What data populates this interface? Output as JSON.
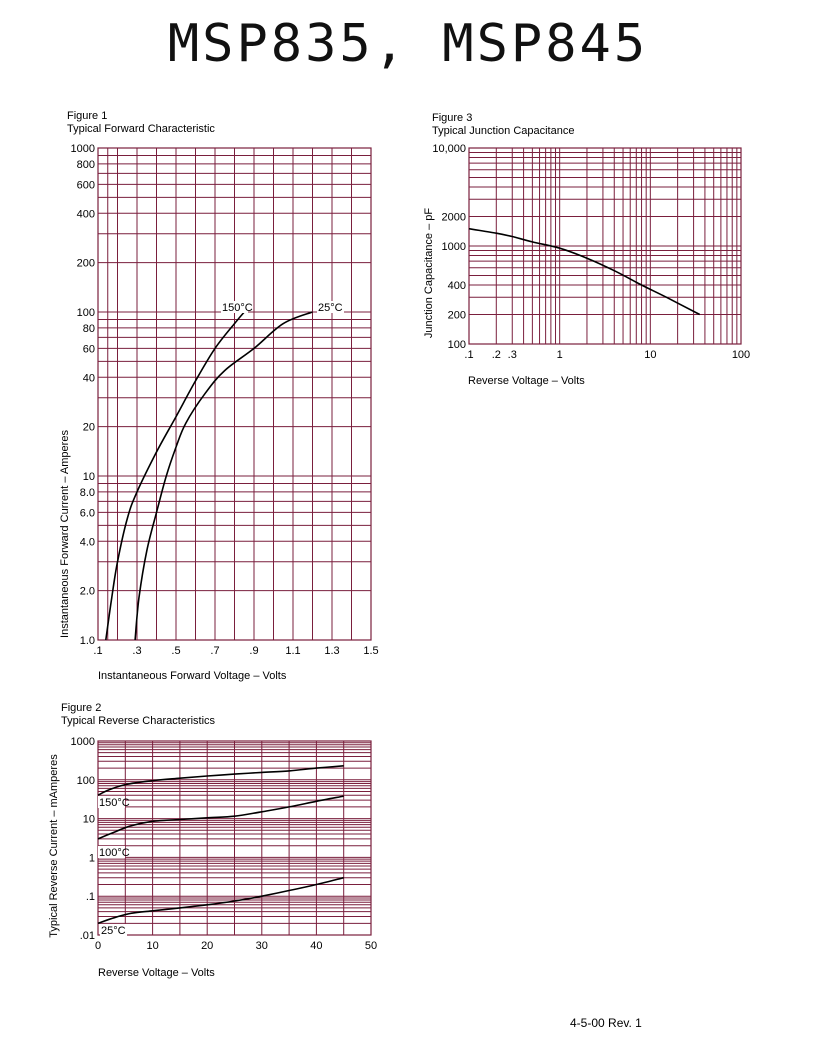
{
  "page": {
    "title": "MSP835, MSP845",
    "revision": "4-5-00   Rev. 1"
  },
  "colors": {
    "grid": "#7a1f3d",
    "curve": "#000000",
    "text": "#000000"
  },
  "chart_data": [
    {
      "figure": "Figure 1",
      "title": "Typical Forward Characteristic",
      "type": "line",
      "xlabel": "Instantaneous Forward Voltage – Volts",
      "ylabel": "Instantaneous Forward Current – Amperes",
      "xscale": "linear",
      "yscale": "log",
      "xlim": [
        0.1,
        1.5
      ],
      "ylim": [
        1,
        1000
      ],
      "xticks": [
        0.1,
        0.3,
        0.5,
        0.7,
        0.9,
        1.1,
        1.3,
        1.5
      ],
      "xtick_labels": [
        ".1",
        ".3",
        ".5",
        ".7",
        ".9",
        "1.1",
        "1.3",
        "1.5"
      ],
      "yticks": [
        1,
        2,
        4,
        6,
        8,
        10,
        20,
        40,
        60,
        80,
        100,
        200,
        400,
        600,
        800,
        1000
      ],
      "ytick_labels": [
        "1.0",
        "2.0",
        "4.0",
        "6.0",
        "8.0",
        "10",
        "20",
        "40",
        "60",
        "80",
        "100",
        "200",
        "400",
        "600",
        "800",
        "1000"
      ],
      "grid": true,
      "series": [
        {
          "name": "150°C",
          "x": [
            0.14,
            0.17,
            0.2,
            0.25,
            0.3,
            0.4,
            0.5,
            0.6,
            0.7,
            0.8,
            0.85
          ],
          "y": [
            1.0,
            1.8,
            3.0,
            5.5,
            8.0,
            14,
            23,
            38,
            60,
            85,
            100
          ]
        },
        {
          "name": "25°C",
          "x": [
            0.29,
            0.31,
            0.35,
            0.4,
            0.45,
            0.5,
            0.55,
            0.65,
            0.75,
            0.9,
            1.05,
            1.2
          ],
          "y": [
            1.0,
            1.8,
            3.5,
            6.0,
            10,
            15,
            21,
            32,
            44,
            60,
            85,
            100
          ]
        }
      ]
    },
    {
      "figure": "Figure 2",
      "title": "Typical Reverse Characteristics",
      "type": "line",
      "xlabel": "Reverse Voltage – Volts",
      "ylabel": "Typical Reverse Current – mAmperes",
      "xscale": "linear",
      "yscale": "log",
      "xlim": [
        0,
        50
      ],
      "ylim": [
        0.01,
        1000
      ],
      "xticks": [
        0,
        10,
        20,
        30,
        40,
        50
      ],
      "xtick_labels": [
        "0",
        "10",
        "20",
        "30",
        "40",
        "50"
      ],
      "yticks": [
        0.01,
        0.1,
        1,
        10,
        100,
        1000
      ],
      "ytick_labels": [
        ".01",
        ".1",
        "1",
        "10",
        "100",
        "1000"
      ],
      "grid": true,
      "series": [
        {
          "name": "150°C",
          "x": [
            0,
            2,
            5,
            10,
            15,
            20,
            25,
            30,
            35,
            40,
            45
          ],
          "y": [
            40,
            55,
            75,
            95,
            110,
            125,
            140,
            155,
            170,
            200,
            230
          ]
        },
        {
          "name": "100°C",
          "x": [
            0,
            3,
            6,
            10,
            15,
            20,
            25,
            30,
            35,
            40,
            45
          ],
          "y": [
            3,
            4.5,
            6.5,
            8.5,
            9.5,
            10.5,
            11.5,
            15,
            20,
            28,
            38
          ]
        },
        {
          "name": "25°C",
          "x": [
            0,
            3,
            6,
            10,
            15,
            20,
            25,
            30,
            35,
            40,
            45
          ],
          "y": [
            0.02,
            0.028,
            0.036,
            0.042,
            0.05,
            0.06,
            0.075,
            0.1,
            0.14,
            0.2,
            0.3
          ]
        }
      ]
    },
    {
      "figure": "Figure 3",
      "title": "Typical Junction Capacitance",
      "type": "line",
      "xlabel": "Reverse Voltage – Volts",
      "ylabel": "Junction Capacitance – pF",
      "xscale": "log",
      "yscale": "log",
      "xlim": [
        0.1,
        100
      ],
      "ylim": [
        100,
        10000
      ],
      "xticks": [
        0.1,
        0.2,
        0.3,
        1,
        10,
        100
      ],
      "xtick_labels": [
        ".1",
        ".2",
        ".3",
        "1",
        "10",
        "100"
      ],
      "yticks": [
        100,
        200,
        400,
        1000,
        2000,
        10000
      ],
      "ytick_labels": [
        "100",
        "200",
        "400",
        "1000",
        "2000",
        "10,000"
      ],
      "grid": true,
      "series": [
        {
          "name": "",
          "x": [
            0.1,
            0.2,
            0.3,
            0.5,
            1,
            2,
            4,
            8,
            15,
            35
          ],
          "y": [
            1500,
            1350,
            1250,
            1100,
            950,
            750,
            560,
            400,
            300,
            200
          ]
        }
      ]
    }
  ]
}
